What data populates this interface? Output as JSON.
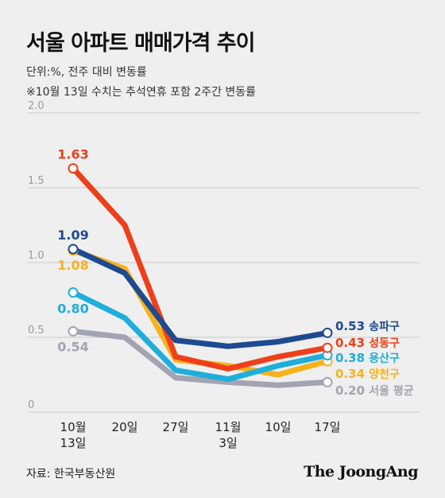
{
  "title": "서울 아파트 매매가격 추이",
  "unit_note": "단위:%, 전주 대비 변동률",
  "footnote": "※10월 13일 수치는 추석연휴 포함 2주간 변동률",
  "source": "자료: 한국부동산원",
  "brand": "The JoongAng",
  "chart_data": {
    "type": "line",
    "categories": [
      {
        "line1": "10월",
        "line2": "13일"
      },
      {
        "line1": "20일",
        "line2": ""
      },
      {
        "line1": "27일",
        "line2": ""
      },
      {
        "line1": "11월",
        "line2": "3일"
      },
      {
        "line1": "10일",
        "line2": ""
      },
      {
        "line1": "17일",
        "line2": ""
      }
    ],
    "ylim": [
      0,
      2.0
    ],
    "yticks": [
      "0",
      "0.5",
      "1.0",
      "1.5",
      "2.0"
    ],
    "ytick_values": [
      0,
      0.5,
      1.0,
      1.5,
      2.0
    ],
    "grid": true,
    "series": [
      {
        "name": "서울 평균",
        "color": "#a3a3b3",
        "values": [
          0.54,
          0.5,
          0.23,
          0.2,
          0.18,
          0.2
        ],
        "start_label": "0.54",
        "end_label": "0.20"
      },
      {
        "name": "양천구",
        "color": "#f6b21c",
        "values": [
          1.08,
          0.96,
          0.35,
          0.31,
          0.25,
          0.34
        ],
        "start_label": "1.08",
        "end_label": "0.34"
      },
      {
        "name": "용산구",
        "color": "#1faedb",
        "values": [
          0.8,
          0.63,
          0.28,
          0.22,
          0.31,
          0.38
        ],
        "start_label": "0.80",
        "end_label": "0.38"
      },
      {
        "name": "성동구",
        "color": "#ee3f1a",
        "values": [
          1.63,
          1.25,
          0.37,
          0.29,
          0.37,
          0.43
        ],
        "start_label": "1.63",
        "end_label": "0.43"
      },
      {
        "name": "송파구",
        "color": "#1d4a91",
        "values": [
          1.09,
          0.93,
          0.48,
          0.44,
          0.47,
          0.53
        ],
        "start_label": "1.09",
        "end_label": "0.53"
      }
    ]
  }
}
